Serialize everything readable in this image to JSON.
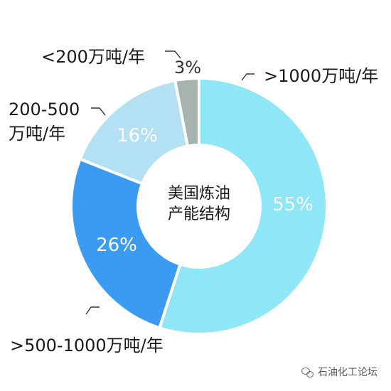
{
  "chart_data": {
    "type": "pie",
    "donut": true,
    "center_label": [
      "美国炼油",
      "产能结构"
    ],
    "slices": [
      {
        "label": ">1000万吨/年",
        "value": 55,
        "value_label": "55%",
        "color": "#8ee6f7"
      },
      {
        "label": ">500-1000万吨/年",
        "value": 26,
        "value_label": "26%",
        "color": "#3b9bf0"
      },
      {
        "label": "200-500\n万吨/年",
        "value": 16,
        "value_label": "16%",
        "color": "#b3e0f2"
      },
      {
        "label": "<200万吨/年",
        "value": 3,
        "value_label": "3%",
        "color": "#a6b3b0"
      }
    ],
    "legend": "none"
  },
  "watermark": {
    "text": "石油化工论坛",
    "icon": "wechat-icon"
  }
}
